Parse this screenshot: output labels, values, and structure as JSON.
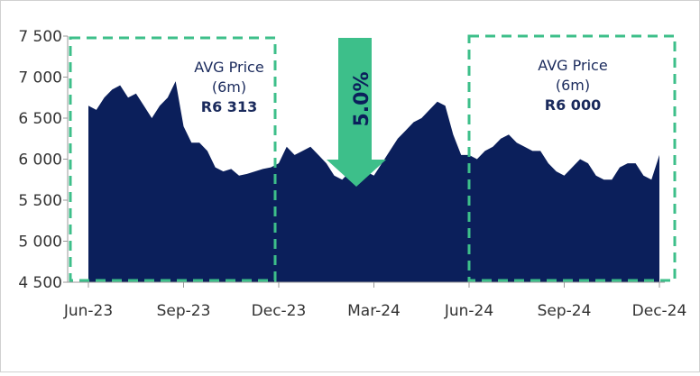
{
  "chart_data": {
    "type": "area",
    "categories": [
      "Jun-23",
      null,
      null,
      null,
      null,
      null,
      null,
      null,
      null,
      null,
      null,
      null,
      "Sep-23",
      null,
      null,
      null,
      null,
      null,
      null,
      null,
      null,
      null,
      null,
      null,
      "Dec-23",
      null,
      null,
      null,
      null,
      null,
      null,
      null,
      null,
      null,
      null,
      null,
      "Mar-24",
      null,
      null,
      null,
      null,
      null,
      null,
      null,
      null,
      null,
      null,
      null,
      "Jun-24",
      null,
      null,
      null,
      null,
      null,
      null,
      null,
      null,
      null,
      null,
      null,
      "Sep-24",
      null,
      null,
      null,
      null,
      null,
      null,
      null,
      null,
      null,
      null,
      null,
      "Dec-24"
    ],
    "values": [
      6650,
      6600,
      6750,
      6850,
      6900,
      6750,
      6800,
      6650,
      6500,
      6650,
      6750,
      6950,
      6400,
      6200,
      6200,
      6100,
      5900,
      5850,
      5880,
      5800,
      5820,
      5850,
      5880,
      5900,
      5950,
      6150,
      6050,
      6100,
      6150,
      6050,
      5950,
      5800,
      5750,
      5850,
      5900,
      5850,
      5800,
      5950,
      6100,
      6250,
      6350,
      6450,
      6500,
      6600,
      6700,
      6650,
      6300,
      6050,
      6050,
      6000,
      6100,
      6150,
      6250,
      6300,
      6200,
      6150,
      6100,
      6100,
      5950,
      5850,
      5800,
      5900,
      6000,
      5950,
      5800,
      5750,
      5750,
      5900,
      5950,
      5950,
      5800,
      5750,
      6050
    ],
    "color": "#0b1f5b",
    "ylim": [
      4500,
      7500
    ],
    "yticks": [
      {
        "value": 4500,
        "label": "4 500"
      },
      {
        "value": 5000,
        "label": "5 000"
      },
      {
        "value": 5500,
        "label": "5 500"
      },
      {
        "value": 6000,
        "label": "6 000"
      },
      {
        "value": 6500,
        "label": "6 500"
      },
      {
        "value": 7000,
        "label": "7 000"
      },
      {
        "value": 7500,
        "label": "7 500"
      }
    ],
    "annotation_color": "#3dbf8a",
    "annotations": [
      {
        "lines": [
          "AVG Price",
          "(6m)",
          "R6 313"
        ]
      },
      {
        "lines": [
          "AVG Price",
          "(6m)",
          "R6 000"
        ]
      }
    ],
    "change_label": "5.0%"
  }
}
